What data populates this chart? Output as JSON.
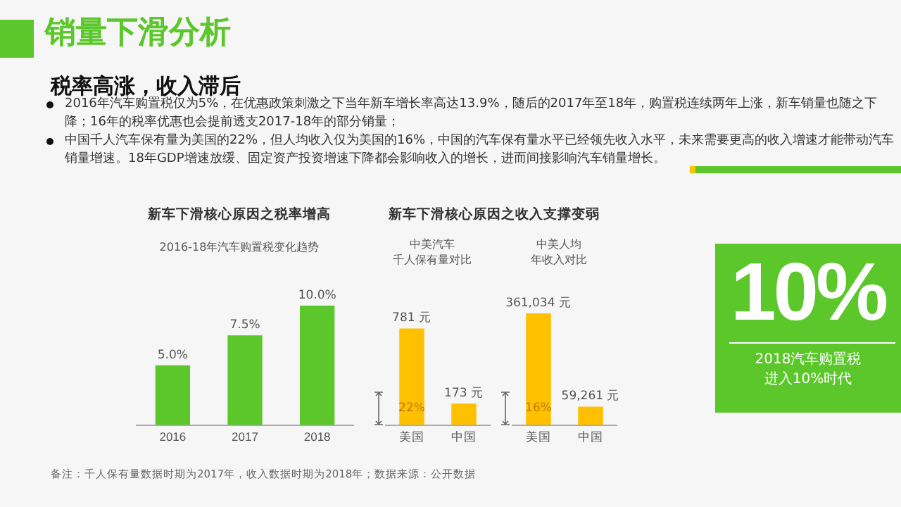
{
  "chart_data": [
    {
      "type": "other",
      "title": "销量下滑分析",
      "subtitle": "税率高涨，收入滞后",
      "annotations": [
        "2016年汽车购置税仅为5%，在优惠政策刺激之下当年新车增长率高达13.9%，随后的2017年至18年，购置税连续两年上涨，新车销量也随之下降；16年的税率优惠也会提前透支2017-18年的部分销量；",
        "中国千人汽车保有量为美国的22%，但人均收入仅为美国的16%，中国的汽车保有量水平已经领先收入水平，未来需要更高的收入增速才能带动汽车销量增速。18年GDP增速放缓、固定资产投资增速下降都会影响收入的增长，进而间接影响汽车销量增长。",
        "备注：千人保有量数据时期为2017年，收入数据时期为2018年；数据来源：公开数据"
      ]
    },
    {
      "type": "bar",
      "title": "新车下滑核心原因之税率增高",
      "subtitle": "2016-18年汽车购置税变化趋势",
      "categories": [
        "2016",
        "2017",
        "2018"
      ],
      "values": [
        5,
        7.5,
        10
      ],
      "color": "#5bc72b",
      "value_labels": [
        "5.0%",
        "7.5%",
        "10.0%"
      ]
    },
    {
      "type": "bar",
      "title": "新车下滑核心原因之收入支撑变弱",
      "subtitle": "中美汽车千人保有量对比",
      "categories": [
        "美国",
        "中国"
      ],
      "values": [
        781,
        173
      ],
      "color": "#ffc000",
      "value_labels": [
        "781 元",
        "173 元"
      ],
      "annotations": [
        "22%"
      ]
    },
    {
      "type": "bar",
      "subtitle": "中美人均年收入对比",
      "categories": [
        "美国",
        "中国"
      ],
      "values": [
        361034,
        59261
      ],
      "color": "#ffc000",
      "value_labels": [
        "361,034 元",
        "59,261 元"
      ],
      "annotations": [
        "16%"
      ]
    },
    {
      "type": "other",
      "title": "10%",
      "annotations": [
        "2018汽车购置税进入10%时代"
      ]
    }
  ]
}
